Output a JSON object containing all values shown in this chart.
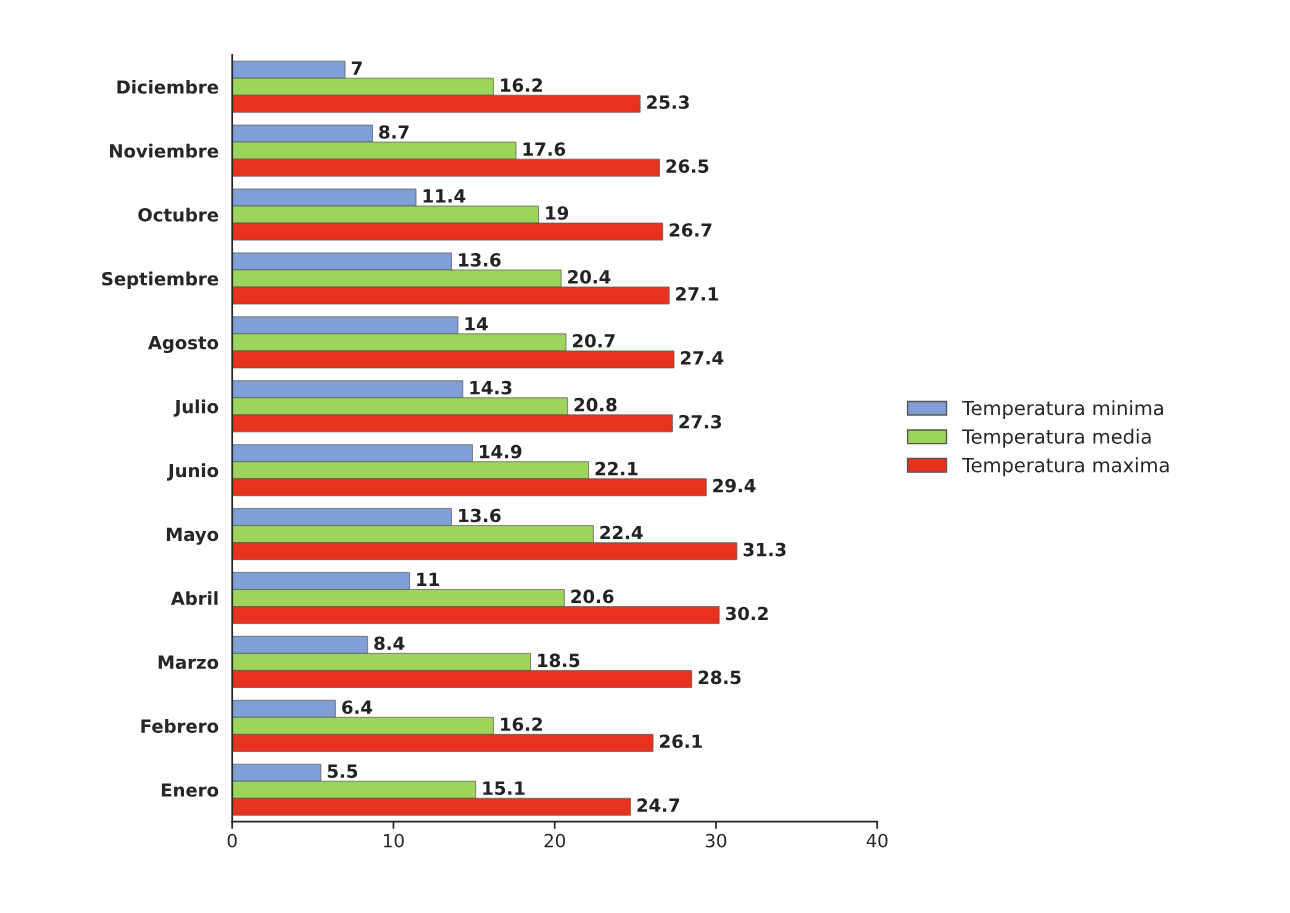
{
  "chart_data": {
    "type": "bar",
    "orientation": "horizontal",
    "categories": [
      "Diciembre",
      "Noviembre",
      "Octubre",
      "Septiembre",
      "Agosto",
      "Julio",
      "Junio",
      "Mayo",
      "Abril",
      "Marzo",
      "Febrero",
      "Enero"
    ],
    "series": [
      {
        "name": "Temperatura minima",
        "color": "#7f9fd6",
        "values": [
          7,
          8.7,
          11.4,
          13.6,
          14,
          14.3,
          14.9,
          13.6,
          11,
          8.4,
          6.4,
          5.5
        ]
      },
      {
        "name": "Temperatura media",
        "color": "#9bd65a",
        "values": [
          16.2,
          17.6,
          19,
          20.4,
          20.7,
          20.8,
          22.1,
          22.4,
          20.6,
          18.5,
          16.2,
          15.1
        ]
      },
      {
        "name": "Temperatura maxima",
        "color": "#e8321e",
        "values": [
          25.3,
          26.5,
          26.7,
          27.1,
          27.4,
          27.3,
          29.4,
          31.3,
          30.2,
          28.5,
          26.1,
          24.7
        ]
      }
    ],
    "xlim": [
      0,
      40
    ],
    "xticks": [
      0,
      10,
      20,
      30,
      40
    ],
    "data_labels": true,
    "legend": "right",
    "grid": false
  }
}
